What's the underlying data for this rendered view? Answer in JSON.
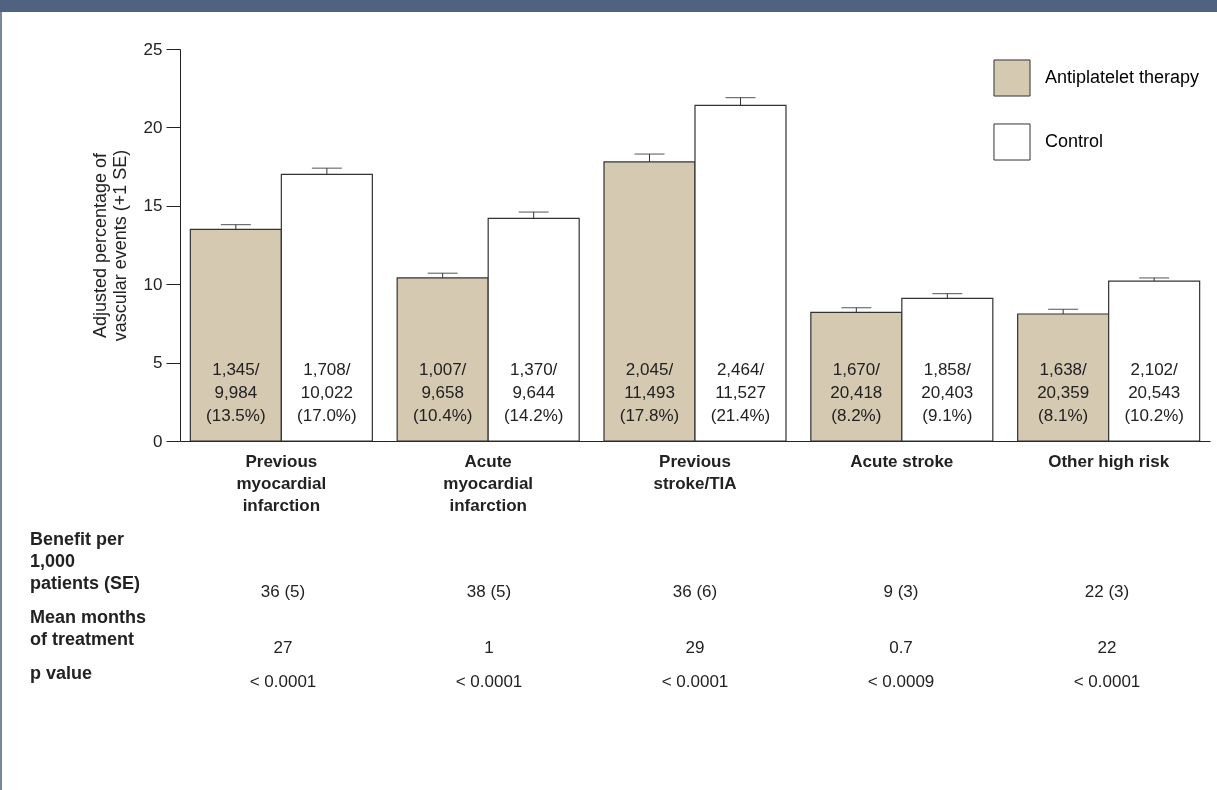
{
  "chart_data": {
    "type": "bar",
    "ylabel": "Adjusted percentage of vascular events (+1 SE)",
    "categories": [
      "Previous myocardial infarction",
      "Acute myocardial infarction",
      "Previous stroke/TIA",
      "Acute stroke",
      "Other high risk"
    ],
    "series": [
      {
        "name": "Antiplatelet therapy",
        "color": "#d5c9b1",
        "values": [
          13.5,
          10.4,
          17.8,
          8.2,
          8.1
        ],
        "errors": [
          [
            13.5,
            13.8
          ],
          [
            10.4,
            10.7
          ],
          [
            17.8,
            18.3
          ],
          [
            8.2,
            8.5
          ],
          [
            8.1,
            8.4
          ]
        ],
        "value_labels": [
          "1,345/\n9,984\n(13.5%)",
          "1,007/\n9,658\n(10.4%)",
          "2,045/\n11,493\n(17.8%)",
          "1,670/\n20,418\n(8.2%)",
          "1,638/\n20,359\n(8.1%)"
        ]
      },
      {
        "name": "Control",
        "color": "#ffffff",
        "values": [
          17.0,
          14.2,
          21.4,
          9.1,
          10.2
        ],
        "errors": [
          [
            17.0,
            17.4
          ],
          [
            14.2,
            14.6
          ],
          [
            21.4,
            21.9
          ],
          [
            9.1,
            9.4
          ],
          [
            10.2,
            10.4
          ]
        ],
        "value_labels": [
          "1,708/\n10,022\n(17.0%)",
          "1,370/\n9,644\n(14.2%)",
          "2,464/\n11,527\n(21.4%)",
          "1,858/\n20,403\n(9.1%)",
          "2,102/\n20,543\n(10.2%)"
        ]
      }
    ],
    "ylim": [
      0,
      25
    ],
    "yticks": [
      0,
      5,
      10,
      15,
      20,
      25
    ],
    "grid": false,
    "legend": "top right",
    "annotations": [
      "Benefit per 1,000 patients (SE)",
      "36 (5)",
      "38 (5)",
      "36 (6)",
      "9 (3)",
      "22 (3)",
      "Mean months of treatment",
      "27",
      "1",
      "29",
      "0.7",
      "22",
      "p value",
      "< 0.0001",
      "< 0.0001",
      "< 0.0001",
      "< 0.0009",
      "< 0.0001"
    ]
  }
}
